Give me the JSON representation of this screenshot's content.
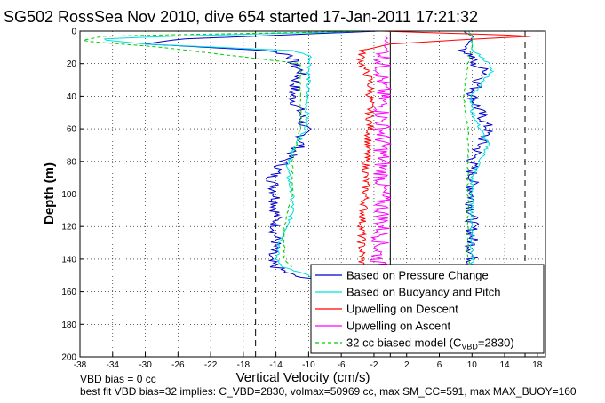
{
  "chart_data": {
    "type": "line",
    "title": "SG502 RossSea Nov 2010, dive 654 started 17-Jan-2011 17:21:32",
    "xlabel": "Vertical Velocity (cm/s)",
    "ylabel": "Depth (m)",
    "xlim": [
      -38,
      19
    ],
    "ylim": [
      200,
      0
    ],
    "y_reversed": true,
    "grid": true,
    "x_ticks": [
      -38,
      -34,
      -30,
      -26,
      -22,
      -18,
      -14,
      -10,
      -6,
      -2,
      2,
      6,
      10,
      14,
      18
    ],
    "y_ticks": [
      0,
      20,
      40,
      60,
      80,
      100,
      120,
      140,
      160,
      180,
      200
    ],
    "legend_position": "bottom-right",
    "vertical_dashed_lines": [
      -16.5,
      16.5
    ],
    "vertical_solid_lines": [
      0
    ],
    "series": [
      {
        "name": "Based on Pressure Change",
        "color": "#0000cc",
        "depth": [
          0,
          3,
          5,
          8,
          12,
          15,
          20,
          25,
          30,
          40,
          50,
          60,
          70,
          80,
          90,
          100,
          110,
          120,
          130,
          140,
          145,
          150,
          152
        ],
        "descent": [
          -1.5,
          -16,
          -26,
          -30,
          -15,
          -12,
          -12,
          -10.8,
          -11.5,
          -12,
          -11,
          -10.5,
          -11,
          -13,
          -14.5,
          -14,
          -14,
          -14,
          -14,
          -15,
          -14,
          -12,
          -10
        ],
        "ascent": [
          9,
          10,
          10,
          9.5,
          9,
          10,
          10,
          12,
          11,
          10,
          11,
          12,
          11,
          10,
          10,
          10,
          10,
          10,
          10,
          10,
          10,
          11,
          12
        ]
      },
      {
        "name": "Based on Buoyancy and Pitch",
        "color": "#00e0e0",
        "depth": [
          0,
          3,
          5,
          8,
          12,
          15,
          20,
          25,
          30,
          40,
          50,
          60,
          70,
          80,
          90,
          100,
          110,
          120,
          130,
          140,
          145,
          150,
          152
        ],
        "descent": [
          -3,
          -26,
          -36,
          -30,
          -12,
          -9.8,
          -9.8,
          -10,
          -10,
          -10.2,
          -10.2,
          -10.3,
          -11.5,
          -12.5,
          -12.5,
          -12,
          -12,
          -12.5,
          -13.5,
          -14,
          -13,
          -10,
          -9.5
        ],
        "ascent": [
          9.5,
          10,
          10,
          10,
          10,
          11,
          12,
          12.5,
          11.5,
          10,
          10,
          11,
          12,
          11,
          10,
          10,
          10,
          10,
          10,
          10,
          10,
          10,
          11
        ]
      },
      {
        "name": "Upwelling on Descent",
        "color": "#ff0000",
        "depth": [
          0,
          3,
          5,
          8,
          12,
          20,
          30,
          40,
          60,
          80,
          100,
          120,
          130,
          140,
          150
        ],
        "values": [
          -1,
          18,
          10,
          0,
          -3.5,
          -3.5,
          -2.5,
          -2.5,
          -2.5,
          -3,
          -3,
          -3.5,
          -3.5,
          -3.5,
          -3.5
        ]
      },
      {
        "name": "Upwelling on Ascent",
        "color": "#ff00ff",
        "depth": [
          2,
          10,
          20,
          30,
          40,
          60,
          80,
          100,
          120,
          140,
          150
        ],
        "values": [
          -0.5,
          -0.5,
          -1,
          -1,
          -1,
          -1,
          -1,
          -1,
          -1,
          -1.5,
          -1.5
        ]
      },
      {
        "name": "32 cc biased model (C_VBD=2830)",
        "color": "#00cc00",
        "dashed": true,
        "depth": [
          0,
          3,
          6,
          10,
          20,
          40,
          60,
          80,
          100,
          120,
          140,
          145
        ],
        "descent": [
          -2,
          -35,
          -38,
          -28,
          -11,
          -11,
          -11,
          -12,
          -12,
          -13,
          -13,
          -12
        ],
        "ascent": [
          9,
          10,
          10,
          10,
          9.5,
          9,
          9.5,
          9.5,
          9.5,
          9.5,
          9.5,
          10
        ]
      }
    ],
    "legend_entries": [
      {
        "label": "Based on Pressure Change",
        "color": "#0000cc",
        "dashed": false
      },
      {
        "label": "Based on Buoyancy and Pitch",
        "color": "#00e0e0",
        "dashed": false
      },
      {
        "label": "Upwelling on Descent",
        "color": "#ff0000",
        "dashed": false
      },
      {
        "label": "Upwelling on Ascent",
        "color": "#ff00ff",
        "dashed": false
      },
      {
        "label": "32 cc biased model (C",
        "sub": "VBD",
        "suffix": "=2830)",
        "color": "#00cc00",
        "dashed": true
      }
    ],
    "annotations": [
      "VBD bias = 0 cc",
      "best fit VBD bias=32 implies: C_VBD=2830, volmax=50969 cc, max SM_CC=591, max MAX_BUOY=160"
    ]
  }
}
